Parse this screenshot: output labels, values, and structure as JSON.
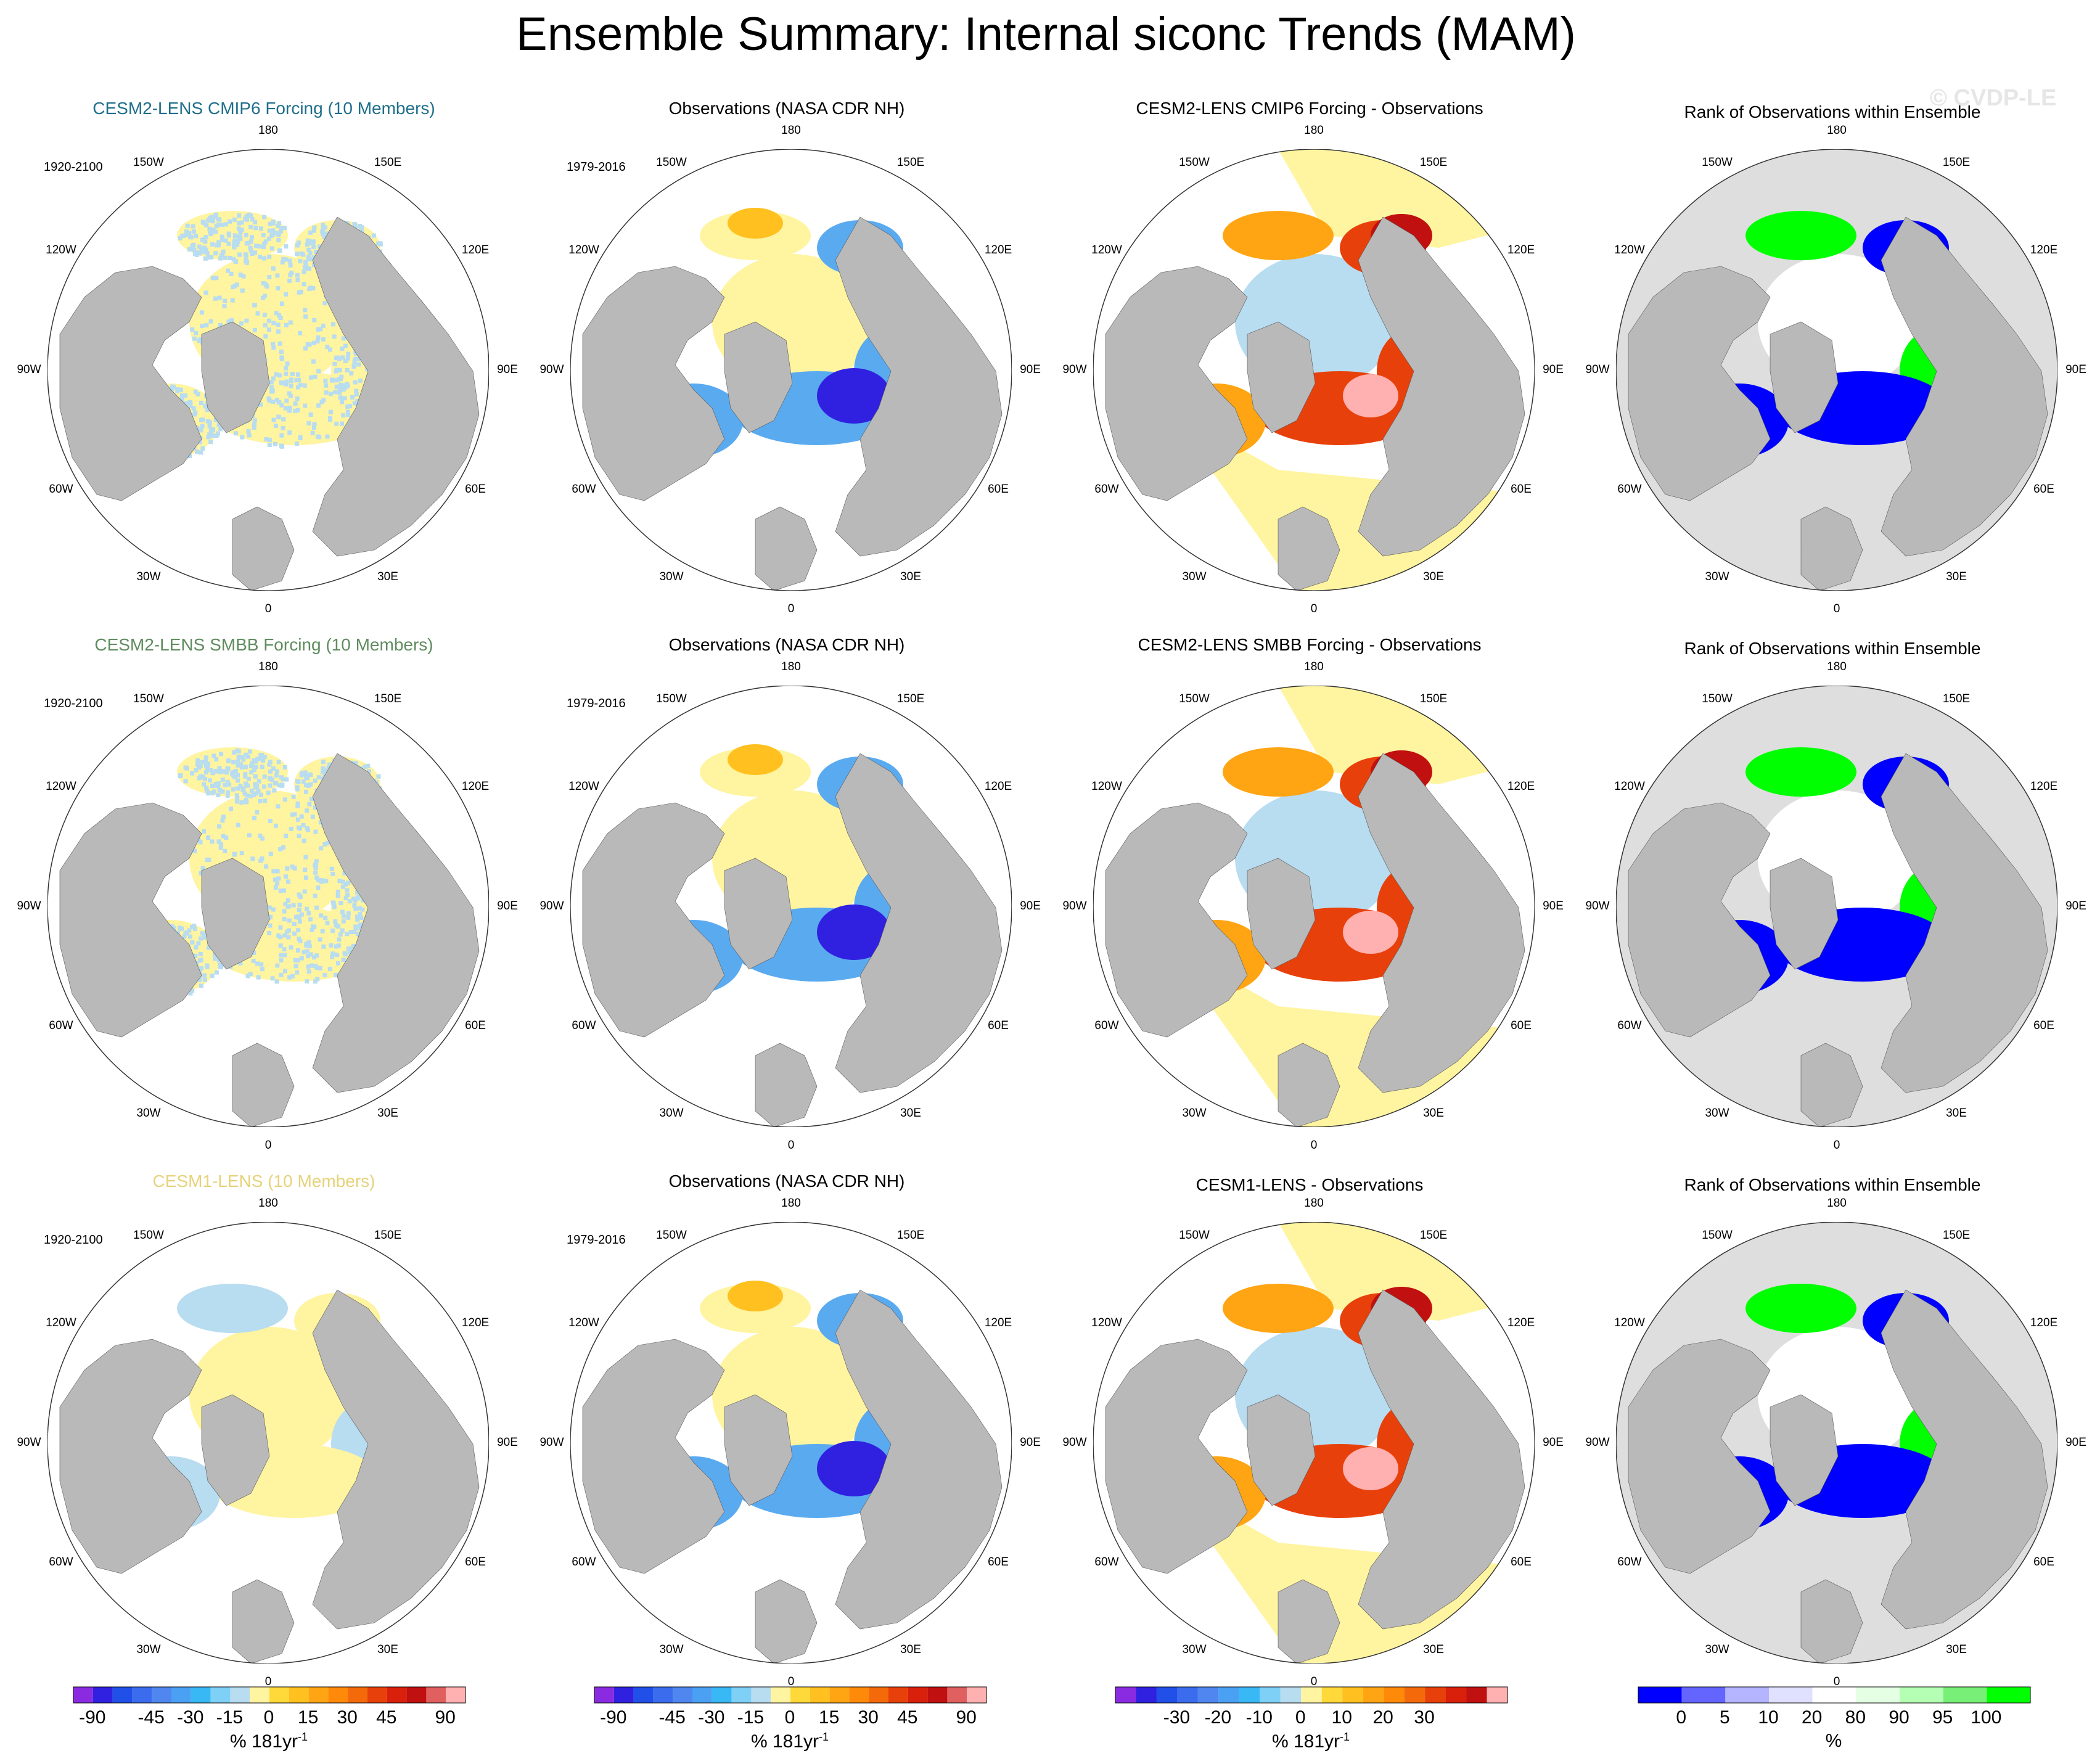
{
  "title": "Ensemble Summary: Internal siconc Trends (MAM)",
  "watermark": "© CVDP-LE",
  "longitude_labels": [
    "180",
    "150E",
    "120E",
    "90E",
    "60E",
    "30E",
    "0",
    "30W",
    "60W",
    "90W",
    "120W",
    "150W"
  ],
  "colors": {
    "land": "#b9b9b9",
    "ocean": "#ffffff",
    "neutral_pos": "#fff4a0",
    "neutral_neg": "#b8dcf0",
    "rank_land": "#dedede",
    "coast": "#555555"
  },
  "rows": [
    {
      "panels": [
        {
          "title": "CESM2-LENS CMIP6 Forcing (10 Members)",
          "title_color": "#1f6f8b",
          "period": "1920-2100",
          "kind": "ensemble",
          "pattern": "speckle"
        },
        {
          "title": "Observations (NASA CDR NH)",
          "title_color": "#000000",
          "period": "1979-2016",
          "kind": "obs"
        },
        {
          "title": "CESM2-LENS CMIP6 Forcing - Observations",
          "title_color": "#000000",
          "period": "",
          "kind": "diff"
        },
        {
          "title": "Rank of Observations within Ensemble",
          "title_color": "#000000",
          "period": "",
          "kind": "rank"
        }
      ]
    },
    {
      "panels": [
        {
          "title": "CESM2-LENS SMBB Forcing (10 Members)",
          "title_color": "#5f8c5f",
          "period": "1920-2100",
          "kind": "ensemble",
          "pattern": "speckle"
        },
        {
          "title": "Observations (NASA CDR NH)",
          "title_color": "#000000",
          "period": "1979-2016",
          "kind": "obs"
        },
        {
          "title": "CESM2-LENS SMBB Forcing - Observations",
          "title_color": "#000000",
          "period": "",
          "kind": "diff"
        },
        {
          "title": "Rank of Observations within Ensemble",
          "title_color": "#000000",
          "period": "",
          "kind": "rank"
        }
      ]
    },
    {
      "panels": [
        {
          "title": "CESM1-LENS (10 Members)",
          "title_color": "#e5d27a",
          "period": "1920-2100",
          "kind": "ensemble",
          "pattern": "patches"
        },
        {
          "title": "Observations (NASA CDR NH)",
          "title_color": "#000000",
          "period": "1979-2016",
          "kind": "obs"
        },
        {
          "title": "CESM1-LENS - Observations",
          "title_color": "#000000",
          "period": "",
          "kind": "diff"
        },
        {
          "title": "Rank of Observations within Ensemble",
          "title_color": "#000000",
          "period": "",
          "kind": "rank"
        }
      ]
    }
  ],
  "chart_data": [
    {
      "type": "heatmap",
      "name": "trend colorbar (ensemble)",
      "colors": [
        "#8a2be2",
        "#3020e0",
        "#2050e8",
        "#3b6cee",
        "#4f86f0",
        "#4aa0f2",
        "#38b8f5",
        "#7fd0f7",
        "#b8dcf0",
        "#fff4a0",
        "#ffd93a",
        "#ffc020",
        "#ffa514",
        "#ff8a0a",
        "#f46a0a",
        "#e8400a",
        "#d8200a",
        "#c01010",
        "#e06060",
        "#ffb0b0"
      ],
      "ticks": [
        "-90",
        "-45",
        "-30",
        "-15",
        "0",
        "15",
        "30",
        "45",
        "90"
      ],
      "tick_positions": [
        0.5,
        2,
        3,
        4,
        5,
        6,
        7,
        8,
        9.5
      ],
      "unit": "% 181yr",
      "unit_sup": "-1"
    },
    {
      "type": "heatmap",
      "name": "trend colorbar (observations)",
      "colors": [
        "#8a2be2",
        "#3020e0",
        "#2050e8",
        "#3b6cee",
        "#4f86f0",
        "#4aa0f2",
        "#38b8f5",
        "#7fd0f7",
        "#b8dcf0",
        "#fff4a0",
        "#ffd93a",
        "#ffc020",
        "#ffa514",
        "#ff8a0a",
        "#f46a0a",
        "#e8400a",
        "#d8200a",
        "#c01010",
        "#e06060",
        "#ffb0b0"
      ],
      "ticks": [
        "-90",
        "-45",
        "-30",
        "-15",
        "0",
        "15",
        "30",
        "45",
        "90"
      ],
      "tick_positions": [
        0.5,
        2,
        3,
        4,
        5,
        6,
        7,
        8,
        9.5
      ],
      "unit": "% 181yr",
      "unit_sup": "-1"
    },
    {
      "type": "heatmap",
      "name": "difference colorbar",
      "colors": [
        "#8a2be2",
        "#3020e0",
        "#2050e8",
        "#3b6cee",
        "#4f86f0",
        "#4aa0f2",
        "#38b8f5",
        "#7fd0f7",
        "#b8dcf0",
        "#fff4a0",
        "#ffd93a",
        "#ffc020",
        "#ffa514",
        "#ff8a0a",
        "#f46a0a",
        "#e8400a",
        "#d8200a",
        "#c01010",
        "#ffb0b0"
      ],
      "ticks": [
        "-30",
        "-20",
        "-10",
        "0",
        "10",
        "20",
        "30"
      ],
      "tick_positions": [
        1.5,
        2.5,
        3.5,
        4.5,
        5.5,
        6.5,
        7.5
      ],
      "unit": "% 181yr",
      "unit_sup": "-1"
    },
    {
      "type": "heatmap",
      "name": "rank colorbar",
      "colors": [
        "#0000ff",
        "#6464ff",
        "#b4b4ff",
        "#e0e0ff",
        "#ffffff",
        "#e4ffe4",
        "#b4ffb4",
        "#78f078",
        "#00ff00"
      ],
      "ticks": [
        "0",
        "5",
        "10",
        "20",
        "80",
        "90",
        "95",
        "100"
      ],
      "tick_positions": [
        1,
        2,
        3,
        4,
        5,
        6,
        7,
        8
      ],
      "unit": "%",
      "unit_sup": ""
    }
  ]
}
